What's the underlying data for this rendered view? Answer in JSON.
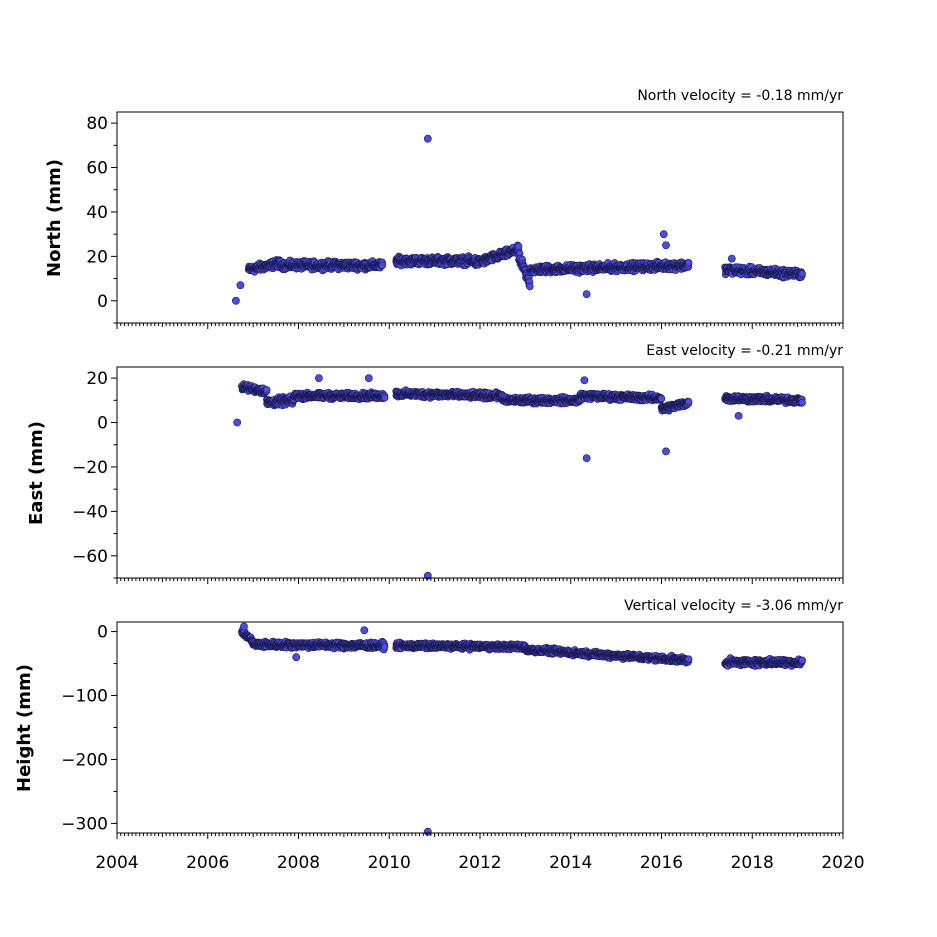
{
  "chart_data": [
    {
      "type": "scatter",
      "panel": "north",
      "title": "North velocity = -0.18 mm/yr",
      "ylabel": "North (mm)",
      "xlim": [
        2004,
        2020
      ],
      "ylim": [
        -10,
        85
      ],
      "yticks": [
        0,
        20,
        40,
        60,
        80
      ],
      "series_color": "#4a4af0",
      "segments": [
        {
          "start": 2006.9,
          "end": 2007.6,
          "y0": 14,
          "y1": 17,
          "spread": 2.5
        },
        {
          "start": 2007.6,
          "end": 2009.85,
          "y0": 16,
          "y1": 16,
          "spread": 2.5
        },
        {
          "start": 2010.15,
          "end": 2011.9,
          "y0": 18,
          "y1": 18,
          "spread": 2.5
        },
        {
          "start": 2011.9,
          "end": 2012.85,
          "y0": 17,
          "y1": 23,
          "spread": 2.5
        },
        {
          "start": 2012.85,
          "end": 2013.1,
          "y0": 20,
          "y1": 8,
          "spread": 3.5
        },
        {
          "start": 2013.1,
          "end": 2016.6,
          "y0": 14,
          "y1": 16,
          "spread": 2.5
        },
        {
          "start": 2017.4,
          "end": 2019.1,
          "y0": 14,
          "y1": 12,
          "spread": 2.5
        }
      ],
      "points": [
        {
          "x": 2006.62,
          "y": 0
        },
        {
          "x": 2006.72,
          "y": 7
        },
        {
          "x": 2010.85,
          "y": 73
        },
        {
          "x": 2014.35,
          "y": 3
        },
        {
          "x": 2016.05,
          "y": 30
        },
        {
          "x": 2016.1,
          "y": 25
        },
        {
          "x": 2017.55,
          "y": 19
        }
      ]
    },
    {
      "type": "scatter",
      "panel": "east",
      "title": "East velocity = -0.21 mm/yr",
      "ylabel": "East (mm)",
      "xlim": [
        2004,
        2020
      ],
      "ylim": [
        -70,
        25
      ],
      "yticks": [
        -60,
        -40,
        -20,
        0,
        20
      ],
      "series_color": "#4a4af0",
      "segments": [
        {
          "start": 2006.75,
          "end": 2007.3,
          "y0": 16,
          "y1": 14,
          "spread": 2
        },
        {
          "start": 2007.3,
          "end": 2007.9,
          "y0": 9,
          "y1": 10,
          "spread": 2.5
        },
        {
          "start": 2007.9,
          "end": 2009.9,
          "y0": 12,
          "y1": 12,
          "spread": 2
        },
        {
          "start": 2010.15,
          "end": 2012.5,
          "y0": 13,
          "y1": 12,
          "spread": 2
        },
        {
          "start": 2012.5,
          "end": 2014.2,
          "y0": 10,
          "y1": 10,
          "spread": 2
        },
        {
          "start": 2014.2,
          "end": 2016.0,
          "y0": 12,
          "y1": 11,
          "spread": 2
        },
        {
          "start": 2016.0,
          "end": 2016.6,
          "y0": 6,
          "y1": 9,
          "spread": 2
        },
        {
          "start": 2017.4,
          "end": 2019.1,
          "y0": 11,
          "y1": 10,
          "spread": 2
        }
      ],
      "points": [
        {
          "x": 2006.65,
          "y": 0
        },
        {
          "x": 2008.45,
          "y": 20
        },
        {
          "x": 2009.55,
          "y": 20
        },
        {
          "x": 2010.85,
          "y": -69
        },
        {
          "x": 2014.3,
          "y": 19
        },
        {
          "x": 2014.35,
          "y": -16
        },
        {
          "x": 2016.1,
          "y": -13
        },
        {
          "x": 2017.7,
          "y": 3
        }
      ]
    },
    {
      "type": "scatter",
      "panel": "height",
      "title": "Vertical velocity = -3.06 mm/yr",
      "ylabel": "Height (mm)",
      "xlim": [
        2004,
        2020
      ],
      "ylim": [
        -315,
        15
      ],
      "yticks": [
        -300,
        -200,
        -100,
        0
      ],
      "series_color": "#4a4af0",
      "segments": [
        {
          "start": 2006.75,
          "end": 2007.0,
          "y0": 0,
          "y1": -15,
          "spread": 5
        },
        {
          "start": 2007.0,
          "end": 2009.9,
          "y0": -20,
          "y1": -22,
          "spread": 7
        },
        {
          "start": 2010.15,
          "end": 2013.0,
          "y0": -22,
          "y1": -24,
          "spread": 6
        },
        {
          "start": 2013.0,
          "end": 2016.6,
          "y0": -28,
          "y1": -45,
          "spread": 6
        },
        {
          "start": 2017.4,
          "end": 2019.1,
          "y0": -48,
          "y1": -48,
          "spread": 7
        }
      ],
      "points": [
        {
          "x": 2006.8,
          "y": 8
        },
        {
          "x": 2007.95,
          "y": -40
        },
        {
          "x": 2009.45,
          "y": 2
        },
        {
          "x": 2010.85,
          "y": -313
        }
      ]
    }
  ],
  "x_axis": {
    "tick_labels": [
      "2004",
      "2006",
      "2008",
      "2010",
      "2012",
      "2014",
      "2016",
      "2018",
      "2020"
    ]
  }
}
